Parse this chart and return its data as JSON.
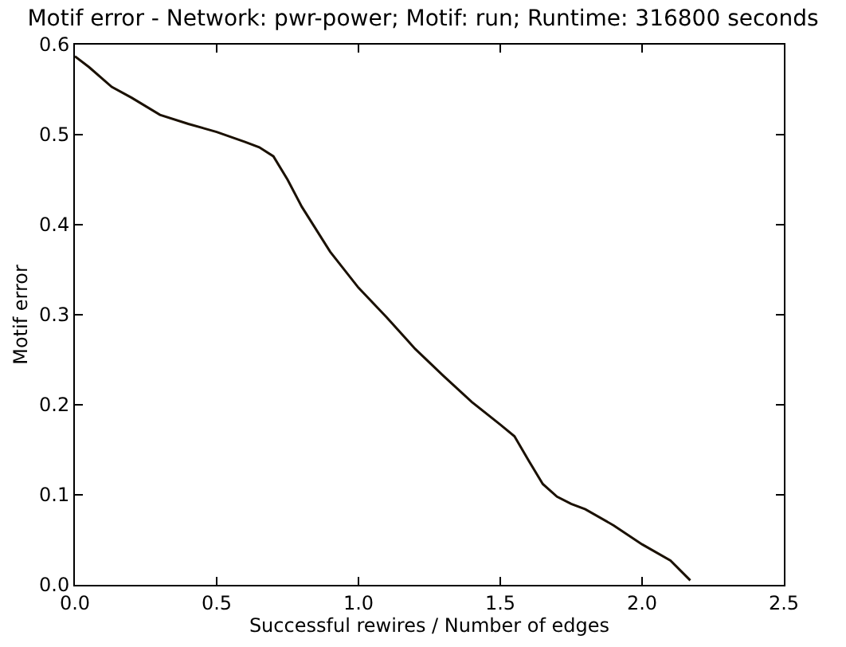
{
  "chart_data": {
    "type": "line",
    "title": "Motif error - Network: pwr-power; Motif: run; Runtime: 316800 seconds",
    "xlabel": "Successful rewires / Number of edges",
    "ylabel": "Motif error",
    "x": [
      0,
      0.05,
      0.13,
      0.2,
      0.3,
      0.4,
      0.5,
      0.6,
      0.65,
      0.7,
      0.75,
      0.8,
      0.9,
      1.0,
      1.1,
      1.2,
      1.3,
      1.4,
      1.5,
      1.55,
      1.6,
      1.65,
      1.7,
      1.75,
      1.8,
      1.9,
      2.0,
      2.1,
      2.17
    ],
    "series": [
      {
        "color": "#1a1000",
        "values": [
          0.587,
          0.575,
          0.553,
          0.541,
          0.522,
          0.512,
          0.503,
          0.492,
          0.486,
          0.476,
          0.45,
          0.42,
          0.37,
          0.33,
          0.297,
          0.262,
          0.232,
          0.203,
          0.178,
          0.165,
          0.138,
          0.112,
          0.098,
          0.09,
          0.084,
          0.066,
          0.045,
          0.027,
          0.005
        ]
      }
    ],
    "xlim": [
      0,
      2.5
    ],
    "xticks": [
      {
        "value": 0,
        "label": "0.0"
      },
      0.5,
      {
        "value": 1,
        "label": "1.0"
      },
      1.5,
      {
        "value": 2,
        "label": "2.0"
      },
      2.5
    ],
    "ylim": [
      0,
      0.6
    ],
    "yticks": [
      {
        "value": 0,
        "label": "0.0"
      },
      0.1,
      0.2,
      0.3,
      0.4,
      0.5,
      0.6
    ],
    "marker": "none",
    "line_style": "solid"
  }
}
